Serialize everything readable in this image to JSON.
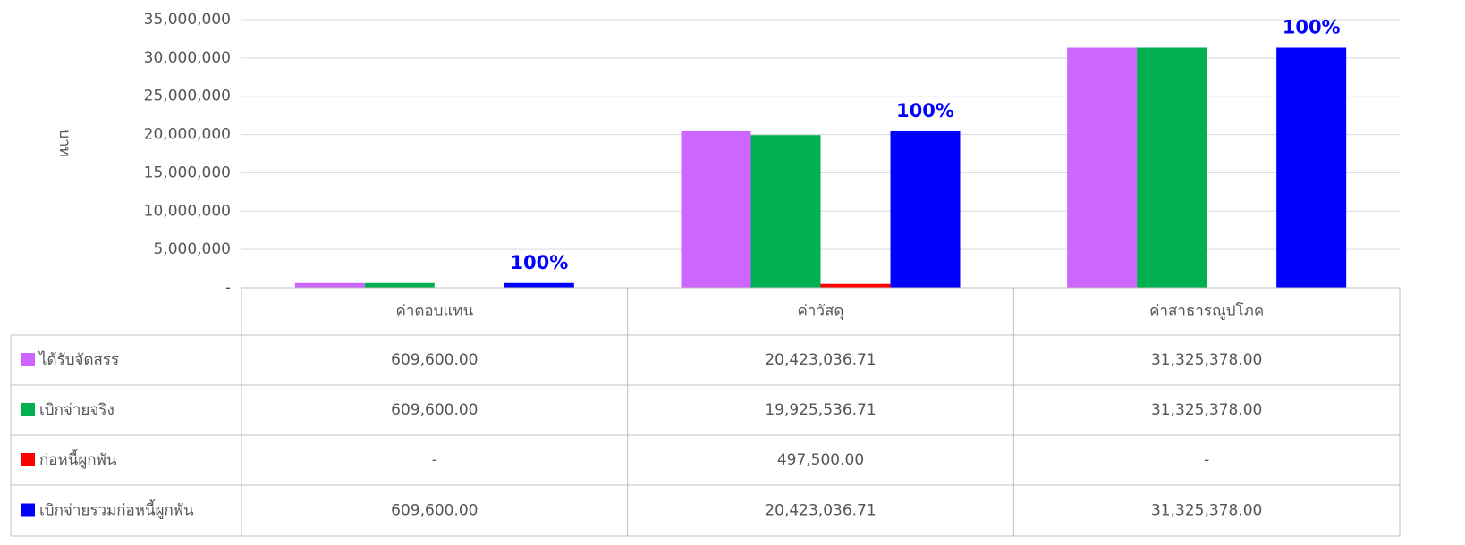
{
  "chart_data": {
    "type": "bar",
    "y_axis_label": "บาท",
    "categories": [
      "ค่าตอบแทน",
      "ค่าวัสดุ",
      "ค่าสาธารณูปโภค"
    ],
    "series": [
      {
        "name": "ได้รับจัดสรร",
        "color": "#cc66ff",
        "values": [
          609600,
          20423036.71,
          31325378
        ],
        "value_labels": [
          "609,600.00",
          "20,423,036.71",
          "31,325,378.00"
        ]
      },
      {
        "name": "เบิกจ่ายจริง",
        "color": "#00b050",
        "values": [
          609600,
          19925536.71,
          31325378
        ],
        "value_labels": [
          "609,600.00",
          "19,925,536.71",
          "31,325,378.00"
        ]
      },
      {
        "name": "ก่อหนี้ผูกพัน",
        "color": "#ff0000",
        "values": [
          0,
          497500,
          0
        ],
        "value_labels": [
          "-",
          "497,500.00",
          "-"
        ]
      },
      {
        "name": "เบิกจ่ายรวมก่อหนี้ผูกพัน",
        "color": "#0000ff",
        "values": [
          609600,
          20423036.71,
          31325378
        ],
        "value_labels": [
          "609,600.00",
          "20,423,036.71",
          "31,325,378.00"
        ],
        "percent_labels": [
          "100%",
          "100%",
          "100%"
        ]
      }
    ],
    "ylim": [
      0,
      35000000
    ],
    "yticks": [
      {
        "value": 0,
        "label": "-"
      },
      {
        "value": 5000000,
        "label": "5,000,000"
      },
      {
        "value": 10000000,
        "label": "10,000,000"
      },
      {
        "value": 15000000,
        "label": "15,000,000"
      },
      {
        "value": 20000000,
        "label": "20,000,000"
      },
      {
        "value": 25000000,
        "label": "25,000,000"
      },
      {
        "value": 30000000,
        "label": "30,000,000"
      },
      {
        "value": 35000000,
        "label": "35,000,000"
      }
    ],
    "grid": true
  }
}
